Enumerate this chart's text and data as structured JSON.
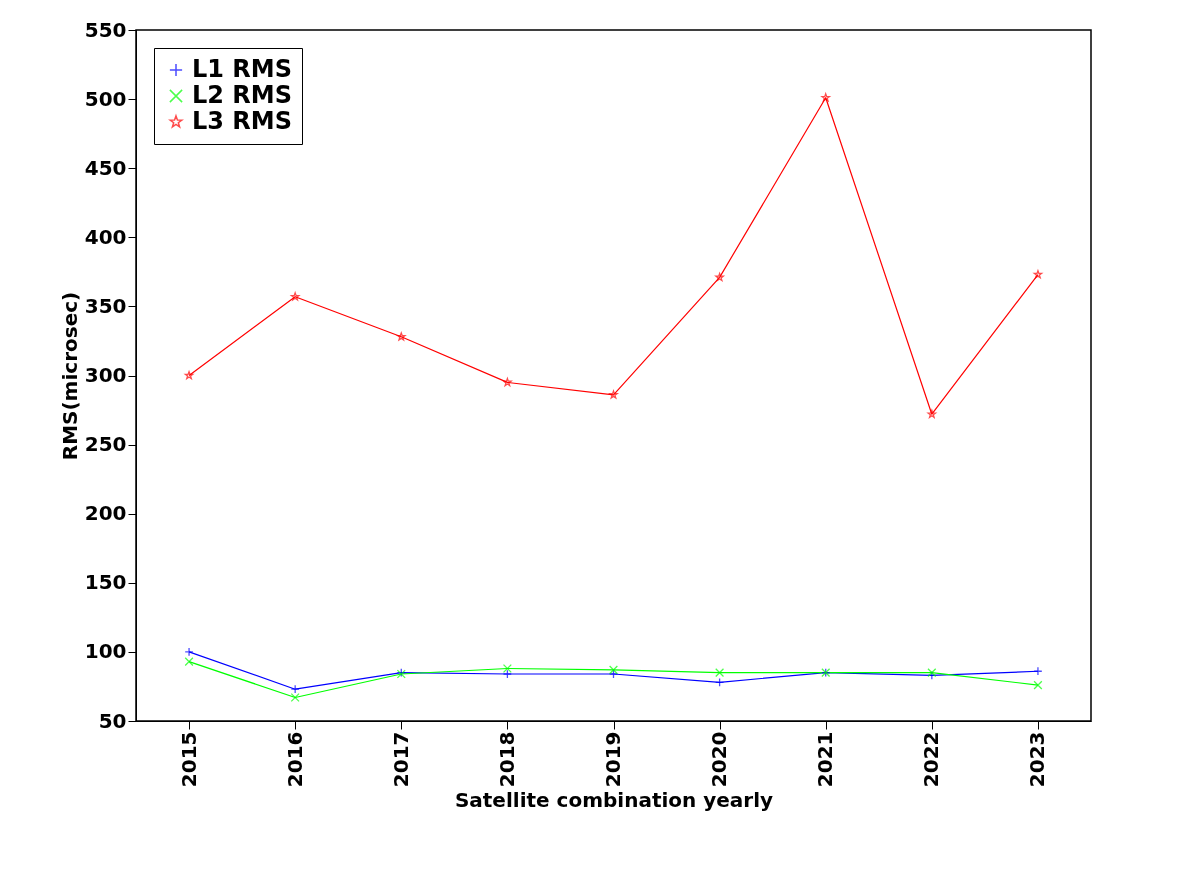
{
  "chart_data": {
    "type": "line",
    "xlabel": "Satellite combination yearly",
    "ylabel": "RMS(microsec)",
    "categories": [
      "2015",
      "2016",
      "2017",
      "2018",
      "2019",
      "2020",
      "2021",
      "2022",
      "2023"
    ],
    "series": [
      {
        "name": "L1 RMS",
        "color": "#0000ff",
        "marker": "cross",
        "values": [
          100,
          73,
          85,
          84,
          84,
          78,
          85,
          83,
          86
        ]
      },
      {
        "name": "L2 RMS",
        "color": "#00ff00",
        "marker": "x",
        "values": [
          93,
          67,
          84,
          88,
          87,
          85,
          85,
          85,
          76
        ]
      },
      {
        "name": "L3 RMS",
        "color": "#ff0000",
        "marker": "star",
        "values": [
          300,
          357,
          328,
          295,
          286,
          371,
          501,
          272,
          373
        ]
      }
    ],
    "ylim": [
      50,
      550
    ],
    "yticks": [
      50,
      100,
      150,
      200,
      250,
      300,
      350,
      400,
      450,
      500,
      550
    ],
    "grid": false,
    "legend": "top left",
    "line_style": "solid"
  }
}
